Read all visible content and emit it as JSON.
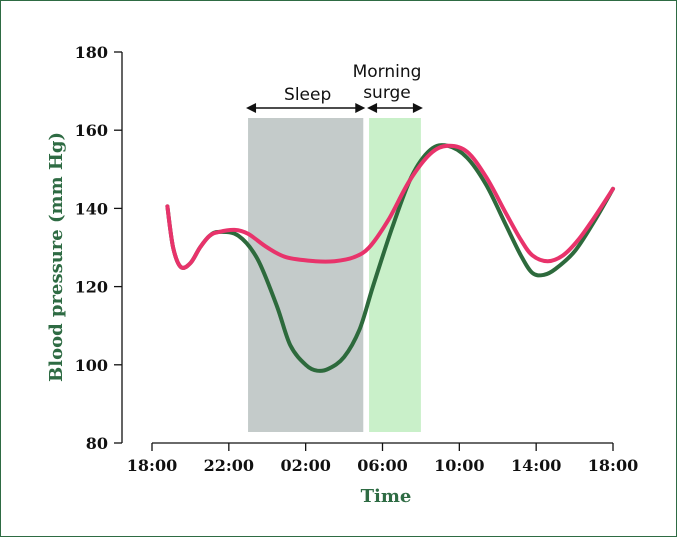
{
  "chart_data": {
    "type": "line",
    "xlabel": "Time",
    "ylabel": "Blood pressure (mm Hg)",
    "ylim": [
      80,
      180
    ],
    "yticks": [
      80,
      100,
      120,
      140,
      160,
      180
    ],
    "xticks": [
      "18:00",
      "22:00",
      "02:00",
      "06:00",
      "10:00",
      "14:00",
      "18:00"
    ],
    "x_hours_since_18": [
      0,
      4,
      8,
      12,
      16,
      20,
      24
    ],
    "grid": false,
    "regions": [
      {
        "label": "Sleep",
        "start_hour": 5.0,
        "end_hour": 11.0,
        "color": "#c4cbca"
      },
      {
        "label": "Morning surge",
        "lines": [
          "Morning",
          "surge"
        ],
        "start_hour": 11.3,
        "end_hour": 14.0,
        "color": "#c9f0c9"
      }
    ],
    "series": [
      {
        "color": "#2d6a3c",
        "points": [
          [
            0.8,
            140.5
          ],
          [
            1.1,
            130
          ],
          [
            1.5,
            125
          ],
          [
            2.0,
            126
          ],
          [
            2.5,
            130
          ],
          [
            3.0,
            133
          ],
          [
            3.5,
            134
          ],
          [
            4.5,
            133
          ],
          [
            5.5,
            127
          ],
          [
            6.5,
            115
          ],
          [
            7.2,
            105
          ],
          [
            8.0,
            100
          ],
          [
            8.6,
            98.5
          ],
          [
            9.2,
            99
          ],
          [
            10.0,
            102
          ],
          [
            10.8,
            109
          ],
          [
            11.5,
            120
          ],
          [
            12.5,
            135
          ],
          [
            13.5,
            148
          ],
          [
            14.5,
            155
          ],
          [
            15.4,
            156
          ],
          [
            16.4,
            153
          ],
          [
            17.4,
            146
          ],
          [
            18.4,
            136
          ],
          [
            19.2,
            128
          ],
          [
            19.8,
            123.5
          ],
          [
            20.4,
            123
          ],
          [
            21.0,
            124.5
          ],
          [
            22.0,
            129
          ],
          [
            23.0,
            136.5
          ],
          [
            24.0,
            145
          ]
        ]
      },
      {
        "color": "#e8336b",
        "points": [
          [
            0.8,
            140.5
          ],
          [
            1.1,
            130
          ],
          [
            1.5,
            125
          ],
          [
            2.0,
            126
          ],
          [
            2.5,
            130
          ],
          [
            3.0,
            133
          ],
          [
            3.5,
            134
          ],
          [
            4.3,
            134.5
          ],
          [
            5.0,
            133.5
          ],
          [
            6.0,
            130
          ],
          [
            7.0,
            127.5
          ],
          [
            8.5,
            126.5
          ],
          [
            9.5,
            126.5
          ],
          [
            10.5,
            127.5
          ],
          [
            11.3,
            130
          ],
          [
            12.3,
            137
          ],
          [
            13.4,
            147
          ],
          [
            14.5,
            154
          ],
          [
            15.4,
            156
          ],
          [
            16.4,
            154.5
          ],
          [
            17.4,
            148
          ],
          [
            18.4,
            139
          ],
          [
            19.2,
            132
          ],
          [
            19.8,
            128
          ],
          [
            20.6,
            126.5
          ],
          [
            21.4,
            128
          ],
          [
            22.2,
            132
          ],
          [
            23.0,
            137.5
          ],
          [
            24.0,
            145
          ]
        ]
      }
    ]
  }
}
